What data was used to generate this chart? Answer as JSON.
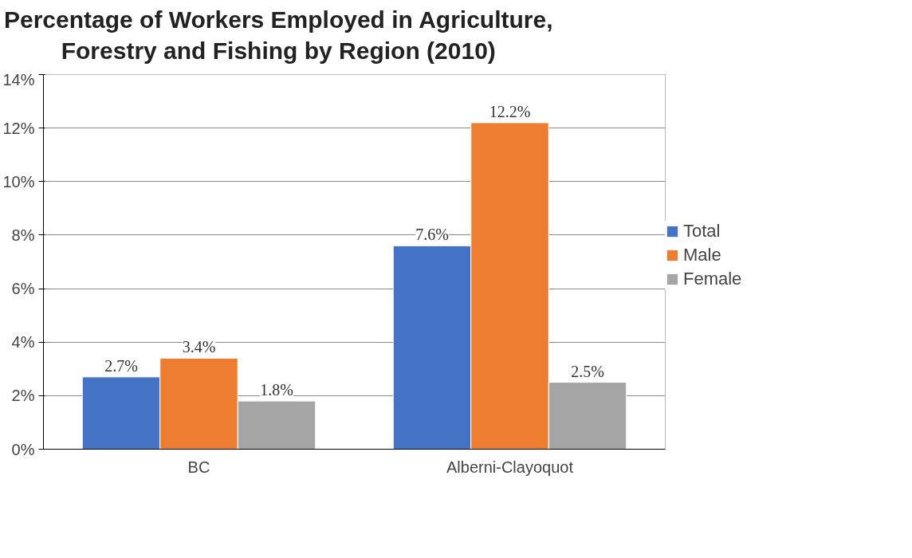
{
  "chart_data": {
    "type": "bar",
    "title": "Percentage of Workers Employed in Agriculture,\nForestry and Fishing by Region (2010)",
    "categories": [
      "BC",
      "Alberni-Clayoquot"
    ],
    "series": [
      {
        "name": "Total",
        "color": "#4472c4",
        "values": [
          2.7,
          7.6
        ],
        "value_labels": [
          "2.7%",
          "7.6%"
        ]
      },
      {
        "name": "Male",
        "color": "#ed7d31",
        "values": [
          3.4,
          12.2
        ],
        "value_labels": [
          "3.4%",
          "12.2%"
        ]
      },
      {
        "name": "Female",
        "color": "#a5a5a5",
        "values": [
          1.8,
          2.5
        ],
        "value_labels": [
          "1.8%",
          "2.5%"
        ]
      }
    ],
    "ylim": [
      0,
      14
    ],
    "yticks": [
      {
        "value": 0,
        "label": "0%"
      },
      {
        "value": 2,
        "label": "2%"
      },
      {
        "value": 4,
        "label": "4%"
      },
      {
        "value": 6,
        "label": "6%"
      },
      {
        "value": 8,
        "label": "8%"
      },
      {
        "value": 10,
        "label": "10%"
      },
      {
        "value": 12,
        "label": "12%"
      },
      {
        "value": 14,
        "label": "14%"
      }
    ],
    "grid": "y",
    "legend": "right"
  }
}
